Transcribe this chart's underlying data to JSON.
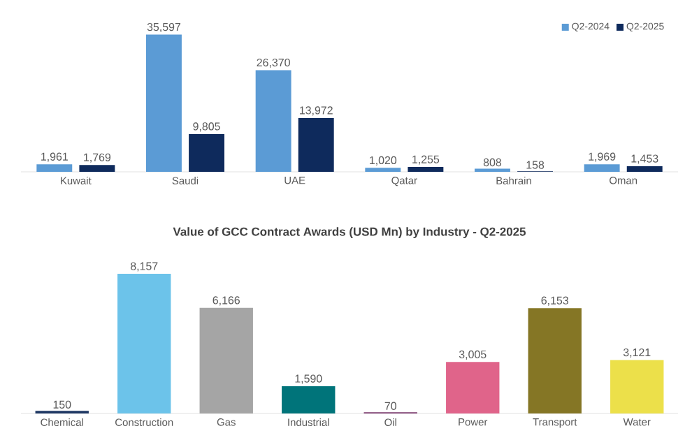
{
  "chart_data": [
    {
      "type": "bar",
      "categories": [
        "Kuwait",
        "Saudi",
        "UAE",
        "Qatar",
        "Bahrain",
        "Oman"
      ],
      "series": [
        {
          "name": "Q2-2024",
          "color": "#5b9bd5",
          "values": [
            1961,
            35597,
            26370,
            1020,
            808,
            1969
          ],
          "value_labels": [
            "1,961",
            "35,597",
            "26,370",
            "1,020",
            "808",
            "1,969"
          ]
        },
        {
          "name": "Q2-2025",
          "color": "#0e2a5c",
          "values": [
            1769,
            9805,
            13972,
            1255,
            158,
            1453
          ],
          "value_labels": [
            "1,769",
            "9,805",
            "13,972",
            "1,255",
            "158",
            "1,453"
          ]
        }
      ],
      "legend": "top right",
      "tick_labels": "x"
    },
    {
      "type": "bar",
      "title": "Value of GCC Contract Awards (USD Mn) by Industry - Q2-2025",
      "categories": [
        "Chemical",
        "Construction",
        "Gas",
        "Industrial",
        "Oil",
        "Power",
        "Transport",
        "Water"
      ],
      "values": [
        150,
        8157,
        6166,
        1590,
        70,
        3005,
        6153,
        3121
      ],
      "value_labels": [
        "150",
        "8,157",
        "6,166",
        "1,590",
        "70",
        "3,005",
        "6,153",
        "3,121"
      ],
      "colors": [
        "#1f3864",
        "#6cc3ea",
        "#a5a5a5",
        "#00747a",
        "#7b3a6e",
        "#e0648a",
        "#857625",
        "#ece04a"
      ],
      "tick_labels": "x"
    }
  ]
}
